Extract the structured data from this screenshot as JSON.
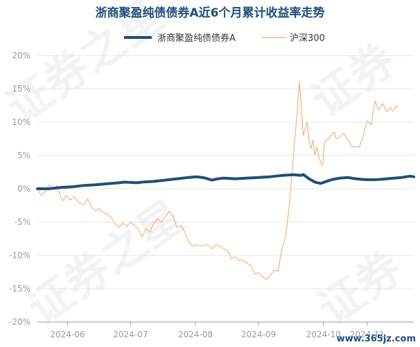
{
  "watermark": {
    "text_main": "证券之星",
    "text_side": "证券"
  },
  "source_label": "www.365jz.com",
  "chart_data": {
    "type": "line",
    "title": "浙商聚盈纯债债券A近6个月累计收益率走势",
    "xlabel": "",
    "ylabel": "",
    "ylim": [
      -20,
      20
    ],
    "y_ticks": [
      "20%",
      "15%",
      "10%",
      "5%",
      "0%",
      "-5%",
      "-10%",
      "-15%",
      "-20%"
    ],
    "x_ticks": [
      "2024-06",
      "2024-07",
      "2024-08",
      "2024-09",
      "2024-10",
      "2024-11"
    ],
    "x_tick_positions": [
      15.5,
      48,
      81.5,
      114,
      147.5,
      170
    ],
    "x_range": [
      0,
      194
    ],
    "legend_position": "top-center",
    "grid": "horizontal",
    "series": [
      {
        "name": "浙商聚盈纯债债券A",
        "color": "#1f4e79",
        "line_width": 4,
        "points": [
          [
            0,
            0
          ],
          [
            6,
            0
          ],
          [
            12,
            0.2
          ],
          [
            18,
            0.3
          ],
          [
            24,
            0.5
          ],
          [
            30,
            0.6
          ],
          [
            36,
            0.75
          ],
          [
            42,
            0.9
          ],
          [
            45,
            1.0
          ],
          [
            48,
            0.95
          ],
          [
            51,
            0.9
          ],
          [
            54,
            1.0
          ],
          [
            60,
            1.1
          ],
          [
            66,
            1.3
          ],
          [
            72,
            1.5
          ],
          [
            78,
            1.7
          ],
          [
            82,
            1.8
          ],
          [
            86,
            1.65
          ],
          [
            90,
            1.3
          ],
          [
            93,
            1.5
          ],
          [
            96,
            1.6
          ],
          [
            102,
            1.5
          ],
          [
            108,
            1.6
          ],
          [
            114,
            1.7
          ],
          [
            120,
            1.8
          ],
          [
            126,
            2.0
          ],
          [
            132,
            2.1
          ],
          [
            136,
            2.0
          ],
          [
            137,
            2.15
          ],
          [
            140,
            1.5
          ],
          [
            143,
            1.0
          ],
          [
            146,
            0.8
          ],
          [
            149,
            1.1
          ],
          [
            152,
            1.4
          ],
          [
            156,
            1.6
          ],
          [
            160,
            1.7
          ],
          [
            164,
            1.5
          ],
          [
            168,
            1.4
          ],
          [
            172,
            1.35
          ],
          [
            176,
            1.4
          ],
          [
            180,
            1.5
          ],
          [
            184,
            1.6
          ],
          [
            188,
            1.7
          ],
          [
            192,
            1.9
          ],
          [
            194,
            1.8
          ]
        ]
      },
      {
        "name": "沪深300",
        "color": "#f4b183",
        "line_width": 1.2,
        "points": [
          [
            0,
            0
          ],
          [
            2,
            -1.0
          ],
          [
            4,
            -0.5
          ],
          [
            6,
            0.6
          ],
          [
            7,
            0.4
          ],
          [
            9,
            0
          ],
          [
            10,
            0.5
          ],
          [
            12,
            -1.2
          ],
          [
            13,
            -1.8
          ],
          [
            15,
            -1.0
          ],
          [
            17,
            -1.7
          ],
          [
            19,
            -1.2
          ],
          [
            21,
            -2.0
          ],
          [
            24,
            -2.4
          ],
          [
            26,
            -1.5
          ],
          [
            28,
            -2.8
          ],
          [
            30,
            -3.3
          ],
          [
            32,
            -3.0
          ],
          [
            34,
            -3.6
          ],
          [
            36,
            -3.8
          ],
          [
            38,
            -4.3
          ],
          [
            40,
            -5.2
          ],
          [
            42,
            -5.8
          ],
          [
            44,
            -5.2
          ],
          [
            46,
            -5.6
          ],
          [
            48,
            -5.0
          ],
          [
            50,
            -5.5
          ],
          [
            52,
            -6.1
          ],
          [
            54,
            -7.2
          ],
          [
            56,
            -6.0
          ],
          [
            58,
            -6.5
          ],
          [
            60,
            -5.2
          ],
          [
            62,
            -4.5
          ],
          [
            64,
            -5.0
          ],
          [
            66,
            -4.2
          ],
          [
            68,
            -3.4
          ],
          [
            70,
            -4.2
          ],
          [
            72,
            -5.8
          ],
          [
            74,
            -5.5
          ],
          [
            76,
            -6.5
          ],
          [
            78,
            -8.0
          ],
          [
            80,
            -8.6
          ],
          [
            82,
            -8.4
          ],
          [
            84,
            -8.6
          ],
          [
            86,
            -8.4
          ],
          [
            88,
            -8.5
          ],
          [
            90,
            -9.0
          ],
          [
            92,
            -8.4
          ],
          [
            94,
            -8.6
          ],
          [
            96,
            -9.0
          ],
          [
            98,
            -9.3
          ],
          [
            100,
            -10.5
          ],
          [
            102,
            -10.2
          ],
          [
            104,
            -10.8
          ],
          [
            106,
            -10.7
          ],
          [
            108,
            -11.2
          ],
          [
            110,
            -11.5
          ],
          [
            112,
            -12.8
          ],
          [
            114,
            -12.6
          ],
          [
            116,
            -13.2
          ],
          [
            118,
            -13.6
          ],
          [
            120,
            -13.0
          ],
          [
            122,
            -12.2
          ],
          [
            124,
            -12.4
          ],
          [
            126,
            -9.0
          ],
          [
            128,
            -7.2
          ],
          [
            130,
            -2.0
          ],
          [
            132,
            5.0
          ],
          [
            134,
            12.0
          ],
          [
            135,
            16.0
          ],
          [
            136,
            12.5
          ],
          [
            137,
            8.0
          ],
          [
            138,
            9.0
          ],
          [
            139,
            10.0
          ],
          [
            140,
            7.5
          ],
          [
            141,
            6.0
          ],
          [
            142,
            7.3
          ],
          [
            143,
            5.0
          ],
          [
            144,
            6.3
          ],
          [
            145,
            4.8
          ],
          [
            146,
            4.0
          ],
          [
            147,
            3.5
          ],
          [
            148,
            7.0
          ],
          [
            150,
            7.5
          ],
          [
            152,
            8.3
          ],
          [
            153,
            8.5
          ],
          [
            154,
            7.5
          ],
          [
            156,
            7.8
          ],
          [
            158,
            8.3
          ],
          [
            160,
            7.3
          ],
          [
            162,
            6.3
          ],
          [
            164,
            6.3
          ],
          [
            166,
            6.3
          ],
          [
            168,
            8.0
          ],
          [
            170,
            10.2
          ],
          [
            172,
            9.6
          ],
          [
            174,
            13.2
          ],
          [
            176,
            11.8
          ],
          [
            178,
            12.8
          ],
          [
            180,
            11.6
          ],
          [
            182,
            12.2
          ],
          [
            183,
            11.6
          ],
          [
            184,
            12.0
          ],
          [
            185,
            12.5
          ],
          [
            186,
            12.2
          ]
        ]
      }
    ]
  }
}
